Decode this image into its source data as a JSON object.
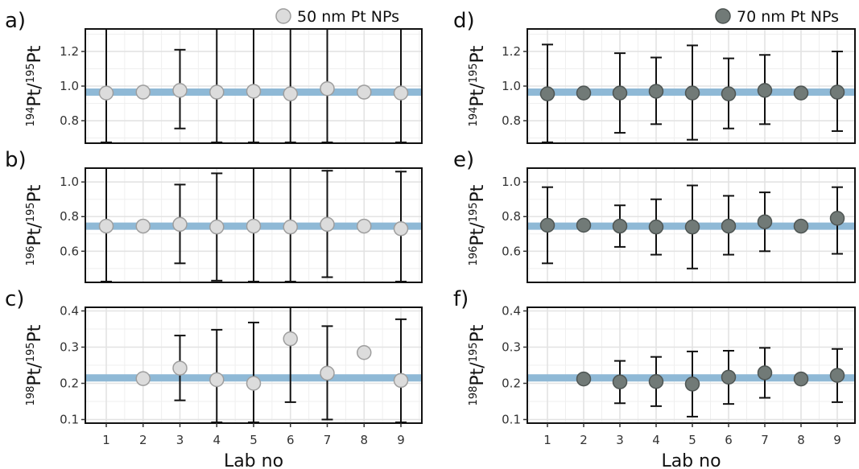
{
  "chart_data": [
    {
      "id": "a",
      "panel_label": "a)",
      "type": "scatter",
      "ylabel": {
        "sup1": "194",
        "main1": "Pt/",
        "sup2": "195",
        "main2": "Pt"
      },
      "xlabel": "Lab no",
      "x": [
        1,
        2,
        3,
        4,
        5,
        6,
        7,
        8,
        9
      ],
      "ylim": [
        0.67,
        1.33
      ],
      "yticks": [
        0.8,
        1.0,
        1.2
      ],
      "ytick_labels": [
        "0.8",
        "1.0",
        "1.2"
      ],
      "reference": 0.965,
      "y": [
        0.96,
        0.965,
        0.975,
        0.965,
        0.97,
        0.955,
        0.985,
        0.965,
        0.96
      ],
      "err_low": [
        0.67,
        null,
        0.755,
        0.67,
        0.67,
        0.67,
        0.67,
        null,
        0.67
      ],
      "err_high": [
        1.33,
        null,
        1.21,
        1.33,
        1.33,
        1.33,
        1.33,
        null,
        1.33
      ],
      "legend": "50 nm Pt NPs",
      "marker_fill": "#dcdcdc",
      "marker_edge": "#9e9e9e",
      "show_xticks": false
    },
    {
      "id": "b",
      "panel_label": "b)",
      "type": "scatter",
      "ylabel": {
        "sup1": "196",
        "main1": "Pt/",
        "sup2": "195",
        "main2": "Pt"
      },
      "xlabel": "Lab no",
      "x": [
        1,
        2,
        3,
        4,
        5,
        6,
        7,
        8,
        9
      ],
      "ylim": [
        0.42,
        1.08
      ],
      "yticks": [
        0.6,
        0.8,
        1.0
      ],
      "ytick_labels": [
        "0.6",
        "0.8",
        "1.0"
      ],
      "reference": 0.745,
      "y": [
        0.745,
        0.745,
        0.755,
        0.74,
        0.745,
        0.74,
        0.755,
        0.745,
        0.73
      ],
      "err_low": [
        0.42,
        null,
        0.53,
        0.43,
        0.42,
        0.42,
        0.45,
        null,
        0.42
      ],
      "err_high": [
        1.08,
        null,
        0.985,
        1.05,
        1.08,
        1.08,
        1.065,
        null,
        1.06
      ],
      "legend": "",
      "marker_fill": "#dcdcdc",
      "marker_edge": "#9e9e9e",
      "show_xticks": false
    },
    {
      "id": "c",
      "panel_label": "c)",
      "type": "scatter",
      "ylabel": {
        "sup1": "198",
        "main1": "Pt/",
        "sup2": "195",
        "main2": "Pt"
      },
      "xlabel": "Lab no",
      "x": [
        1,
        2,
        3,
        4,
        5,
        6,
        7,
        8,
        9
      ],
      "ylim": [
        0.09,
        0.41
      ],
      "yticks": [
        0.1,
        0.2,
        0.3,
        0.4
      ],
      "ytick_labels": [
        "0.1",
        "0.2",
        "0.3",
        "0.4"
      ],
      "reference": 0.215,
      "y": [
        null,
        0.213,
        0.242,
        0.21,
        0.2,
        0.323,
        0.228,
        0.285,
        0.208
      ],
      "err_low": [
        null,
        null,
        0.153,
        0.09,
        0.09,
        0.148,
        0.1,
        null,
        0.09
      ],
      "err_high": [
        null,
        null,
        0.332,
        0.348,
        0.368,
        0.41,
        0.358,
        null,
        0.377
      ],
      "legend": "",
      "marker_fill": "#dcdcdc",
      "marker_edge": "#9e9e9e",
      "show_xticks": true
    },
    {
      "id": "d",
      "panel_label": "d)",
      "type": "scatter",
      "ylabel": {
        "sup1": "194",
        "main1": "Pt/",
        "sup2": "195",
        "main2": "Pt"
      },
      "xlabel": "Lab no",
      "x": [
        1,
        2,
        3,
        4,
        5,
        6,
        7,
        8,
        9
      ],
      "ylim": [
        0.67,
        1.33
      ],
      "yticks": [
        0.8,
        1.0,
        1.2
      ],
      "ytick_labels": [
        "0.8",
        "1.0",
        "1.2"
      ],
      "reference": 0.965,
      "y": [
        0.955,
        0.96,
        0.96,
        0.97,
        0.96,
        0.955,
        0.975,
        0.96,
        0.965
      ],
      "err_low": [
        0.675,
        null,
        0.73,
        0.78,
        0.69,
        0.755,
        0.78,
        null,
        0.74
      ],
      "err_high": [
        1.24,
        null,
        1.19,
        1.165,
        1.235,
        1.16,
        1.18,
        null,
        1.2
      ],
      "legend": "70 nm Pt NPs",
      "marker_fill": "#717a77",
      "marker_edge": "#4e5553",
      "show_xticks": false
    },
    {
      "id": "e",
      "panel_label": "e)",
      "type": "scatter",
      "ylabel": {
        "sup1": "196",
        "main1": "Pt/",
        "sup2": "195",
        "main2": "Pt"
      },
      "xlabel": "Lab no",
      "x": [
        1,
        2,
        3,
        4,
        5,
        6,
        7,
        8,
        9
      ],
      "ylim": [
        0.42,
        1.08
      ],
      "yticks": [
        0.6,
        0.8,
        1.0
      ],
      "ytick_labels": [
        "0.6",
        "0.8",
        "1.0"
      ],
      "reference": 0.745,
      "y": [
        0.75,
        0.75,
        0.745,
        0.74,
        0.74,
        0.745,
        0.77,
        0.745,
        0.79
      ],
      "err_low": [
        0.53,
        null,
        0.625,
        0.58,
        0.5,
        0.58,
        0.6,
        null,
        0.585
      ],
      "err_high": [
        0.97,
        null,
        0.865,
        0.9,
        0.98,
        0.92,
        0.94,
        null,
        0.97
      ],
      "legend": "",
      "marker_fill": "#717a77",
      "marker_edge": "#4e5553",
      "show_xticks": false
    },
    {
      "id": "f",
      "panel_label": "f)",
      "type": "scatter",
      "ylabel": {
        "sup1": "198",
        "main1": "Pt/",
        "sup2": "195",
        "main2": "Pt"
      },
      "xlabel": "Lab no",
      "x": [
        1,
        2,
        3,
        4,
        5,
        6,
        7,
        8,
        9
      ],
      "ylim": [
        0.09,
        0.41
      ],
      "yticks": [
        0.1,
        0.2,
        0.3,
        0.4
      ],
      "ytick_labels": [
        "0.1",
        "0.2",
        "0.3",
        "0.4"
      ],
      "reference": 0.215,
      "y": [
        null,
        0.212,
        0.204,
        0.205,
        0.198,
        0.217,
        0.229,
        0.212,
        0.222
      ],
      "err_low": [
        null,
        null,
        0.145,
        0.137,
        0.108,
        0.143,
        0.16,
        null,
        0.148
      ],
      "err_high": [
        null,
        null,
        0.262,
        0.273,
        0.288,
        0.29,
        0.298,
        null,
        0.295
      ],
      "legend": "",
      "marker_fill": "#717a77",
      "marker_edge": "#4e5553",
      "show_xticks": true
    }
  ],
  "colors": {
    "reference_band": "#8fb9d6",
    "grid": "#e3e3e3",
    "frame": "#111111",
    "errorbar": "#111111"
  }
}
